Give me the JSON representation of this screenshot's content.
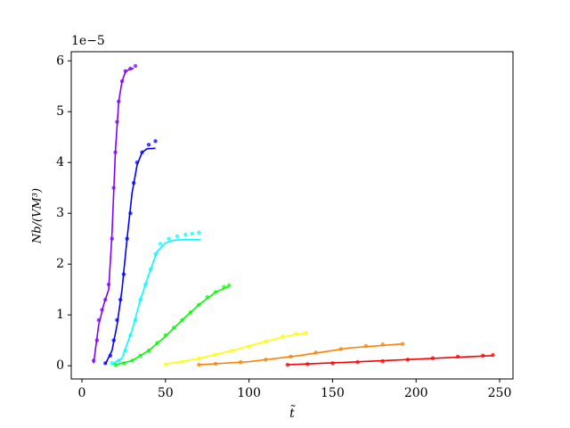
{
  "chart_data": {
    "type": "scatter",
    "ylabel": "Nb/(VM³)",
    "xlabel": "t̃",
    "offset_text": "1e−5",
    "xlim": [
      -6.4,
      258
    ],
    "ylim": [
      -0.26,
      6.18
    ],
    "xticks": [
      0,
      50,
      100,
      150,
      200,
      250
    ],
    "yticks": [
      0,
      1,
      2,
      3,
      4,
      5,
      6
    ],
    "series": [
      {
        "color": "#8000ff",
        "x": [
          7,
          9,
          10,
          12,
          14,
          16,
          18,
          19,
          20,
          21,
          22,
          24,
          26,
          29,
          32
        ],
        "values": [
          0.1,
          0.5,
          0.9,
          1.1,
          1.3,
          1.6,
          2.5,
          3.5,
          4.2,
          4.8,
          5.2,
          5.6,
          5.8,
          5.85,
          5.9
        ],
        "fit_x": [
          7,
          10,
          13,
          16,
          18,
          20,
          22,
          24,
          26,
          28,
          31
        ],
        "fit_values": [
          0.05,
          0.8,
          1.2,
          1.5,
          2.6,
          4.2,
          5.2,
          5.6,
          5.78,
          5.83,
          5.85
        ]
      },
      {
        "color": "#0000ff",
        "x": [
          14,
          17,
          19,
          21,
          23,
          25,
          27,
          29,
          31,
          33,
          36,
          40,
          44
        ],
        "values": [
          0.05,
          0.2,
          0.5,
          0.9,
          1.3,
          1.8,
          2.5,
          3.0,
          3.6,
          4.0,
          4.2,
          4.35,
          4.42
        ],
        "fit_x": [
          14,
          18,
          21,
          24,
          27,
          30,
          33,
          36,
          39,
          44
        ],
        "fit_values": [
          0.03,
          0.3,
          0.8,
          1.5,
          2.5,
          3.4,
          3.95,
          4.2,
          4.27,
          4.28
        ]
      },
      {
        "color": "#00ffff",
        "x": [
          18,
          22,
          26,
          29,
          32,
          35,
          38,
          41,
          44,
          47,
          52,
          57,
          62,
          66,
          70
        ],
        "values": [
          0.05,
          0.1,
          0.3,
          0.6,
          0.9,
          1.3,
          1.6,
          1.9,
          2.2,
          2.4,
          2.5,
          2.55,
          2.58,
          2.6,
          2.62
        ],
        "fit_x": [
          18,
          24,
          30,
          35,
          40,
          45,
          50,
          55,
          60,
          71
        ],
        "fit_values": [
          0.03,
          0.15,
          0.7,
          1.3,
          1.8,
          2.25,
          2.42,
          2.47,
          2.48,
          2.48
        ]
      },
      {
        "color": "#00ff00",
        "x": [
          20,
          25,
          30,
          35,
          40,
          45,
          50,
          55,
          60,
          65,
          70,
          75,
          80,
          85,
          88
        ],
        "values": [
          0.02,
          0.05,
          0.1,
          0.2,
          0.3,
          0.45,
          0.6,
          0.75,
          0.9,
          1.05,
          1.2,
          1.35,
          1.45,
          1.55,
          1.58
        ],
        "fit_x": [
          20,
          30,
          40,
          50,
          60,
          70,
          80,
          88
        ],
        "fit_values": [
          0.02,
          0.1,
          0.3,
          0.58,
          0.9,
          1.2,
          1.45,
          1.56
        ]
      },
      {
        "color": "#ffff00",
        "x": [
          50,
          60,
          70,
          80,
          90,
          100,
          110,
          120,
          128,
          134
        ],
        "values": [
          0.03,
          0.08,
          0.14,
          0.22,
          0.3,
          0.38,
          0.48,
          0.58,
          0.63,
          0.65
        ],
        "fit_x": [
          50,
          70,
          90,
          110,
          125,
          134
        ],
        "fit_values": [
          0.03,
          0.14,
          0.3,
          0.48,
          0.6,
          0.64
        ]
      },
      {
        "color": "#ff8000",
        "x": [
          70,
          80,
          95,
          110,
          125,
          140,
          155,
          170,
          180,
          192
        ],
        "values": [
          0.02,
          0.04,
          0.07,
          0.12,
          0.18,
          0.26,
          0.33,
          0.39,
          0.42,
          0.43
        ],
        "fit_x": [
          70,
          100,
          130,
          160,
          192
        ],
        "fit_values": [
          0.02,
          0.08,
          0.2,
          0.35,
          0.43
        ]
      },
      {
        "color": "#ff0000",
        "x": [
          123,
          135,
          150,
          165,
          180,
          195,
          210,
          225,
          240,
          246
        ],
        "values": [
          0.02,
          0.03,
          0.05,
          0.07,
          0.09,
          0.12,
          0.15,
          0.18,
          0.2,
          0.21
        ],
        "fit_x": [
          123,
          160,
          200,
          246
        ],
        "fit_values": [
          0.02,
          0.07,
          0.13,
          0.2
        ]
      }
    ]
  }
}
